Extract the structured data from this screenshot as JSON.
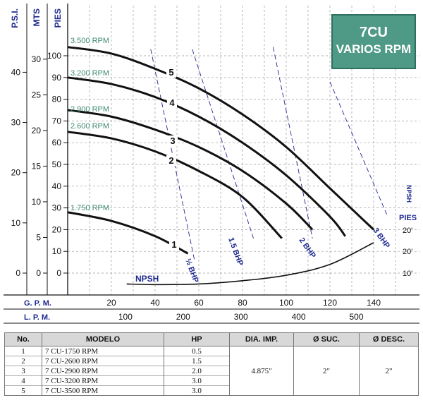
{
  "title": {
    "line1": "7CU",
    "line2": "VARIOS RPM"
  },
  "colors": {
    "title_bg": "#4f9a86",
    "rpm_label": "#3d8b73",
    "bhp": "#1f2a8f",
    "curve": "#111111",
    "grid": "#9a9a9a"
  },
  "axis_headers": {
    "psi": "P.S.I.",
    "mts": "MTS",
    "pies": "PIES",
    "npsh": "NPSH",
    "npsh_pies": "PIES"
  },
  "bottom_axis_labels": {
    "gpm": "G.  P.  M.",
    "lpm": "L.  P.  M."
  },
  "chart_data": {
    "type": "line",
    "title": "7CU VARIOS RPM",
    "x_gpm_ticks": [
      "20",
      "40",
      "60",
      "80",
      "100",
      "120",
      "140"
    ],
    "x_lpm_ticks": [
      "100",
      "200",
      "300",
      "400",
      "500"
    ],
    "y_pies_ticks": [
      "0",
      "10",
      "20",
      "30",
      "40",
      "50",
      "60",
      "70",
      "80",
      "90",
      "100"
    ],
    "y_mts_ticks": [
      "0",
      "5",
      "10",
      "15",
      "20",
      "25",
      "30"
    ],
    "y_psi_ticks": [
      "0",
      "10",
      "20",
      "30",
      "40"
    ],
    "npsh_ticks": [
      "10'",
      "20'",
      "20'"
    ],
    "xlim_gpm": [
      0,
      150
    ],
    "ylim_pies": [
      -10,
      107
    ],
    "grid": true,
    "series": [
      {
        "name": "3.500 RPM",
        "curve_label": "5",
        "points": [
          [
            0,
            104
          ],
          [
            20,
            101
          ],
          [
            40,
            94
          ],
          [
            60,
            85
          ],
          [
            80,
            73
          ],
          [
            100,
            58
          ],
          [
            120,
            39
          ],
          [
            140,
            20
          ]
        ]
      },
      {
        "name": "3.200 RPM",
        "curve_label": "4",
        "points": [
          [
            0,
            90
          ],
          [
            20,
            87
          ],
          [
            40,
            81
          ],
          [
            60,
            72
          ],
          [
            80,
            60
          ],
          [
            100,
            45
          ],
          [
            120,
            26
          ],
          [
            127,
            17
          ]
        ]
      },
      {
        "name": "2.900 RPM",
        "curve_label": "3",
        "points": [
          [
            0,
            75
          ],
          [
            20,
            72
          ],
          [
            40,
            66
          ],
          [
            60,
            58
          ],
          [
            80,
            47
          ],
          [
            100,
            32
          ],
          [
            112,
            20
          ]
        ]
      },
      {
        "name": "2.600 RPM",
        "curve_label": "2",
        "points": [
          [
            0,
            65
          ],
          [
            20,
            62
          ],
          [
            40,
            56
          ],
          [
            60,
            47
          ],
          [
            80,
            35
          ],
          [
            98,
            16
          ]
        ]
      },
      {
        "name": "1.750 RPM",
        "curve_label": "1",
        "points": [
          [
            0,
            28
          ],
          [
            20,
            24
          ],
          [
            40,
            17
          ],
          [
            55,
            9
          ]
        ]
      },
      {
        "name": "NPSH",
        "points": [
          [
            27,
            -5
          ],
          [
            40,
            -5.3
          ],
          [
            60,
            -5
          ],
          [
            80,
            -3.5
          ],
          [
            100,
            -1
          ],
          [
            120,
            4
          ],
          [
            140,
            14
          ]
        ]
      }
    ],
    "bhp_lines": [
      {
        "label": "½ BHP",
        "points": [
          [
            38,
            103
          ],
          [
            58,
            6
          ]
        ]
      },
      {
        "label": "1.5 BHP",
        "points": [
          [
            57,
            103
          ],
          [
            85,
            16
          ]
        ]
      },
      {
        "label": "2 BHP",
        "points": [
          [
            94,
            104
          ],
          [
            112,
            16
          ]
        ]
      },
      {
        "label": "3 BHP",
        "points": [
          [
            120,
            88
          ],
          [
            146,
            27
          ]
        ]
      }
    ]
  },
  "table": {
    "headers": [
      "No.",
      "MODELO",
      "HP",
      "DIA. IMP.",
      "Ø SUC.",
      "Ø DESC."
    ],
    "rows": [
      {
        "no": "1",
        "modelo": "7 CU-1750 RPM",
        "hp": "0.5"
      },
      {
        "no": "2",
        "modelo": "7 CU-2600 RPM",
        "hp": "1.5"
      },
      {
        "no": "3",
        "modelo": "7 CU-2900 RPM",
        "hp": "2.0"
      },
      {
        "no": "4",
        "modelo": "7 CU-3200 RPM",
        "hp": "3.0"
      },
      {
        "no": "5",
        "modelo": "7 CU-3500 RPM",
        "hp": "3.0"
      }
    ],
    "dia_imp": "4.875\"",
    "suc": "2\"",
    "desc": "2\""
  }
}
